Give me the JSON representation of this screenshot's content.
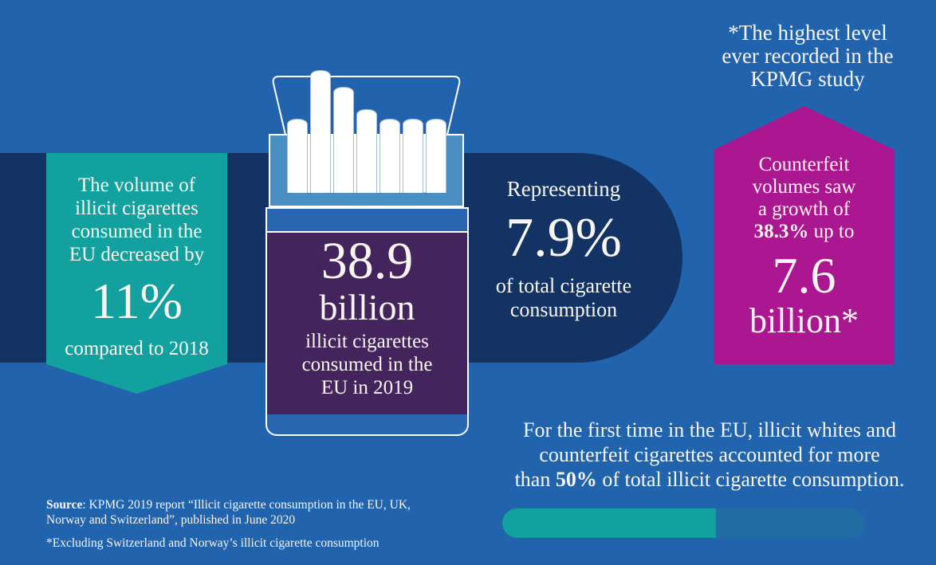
{
  "colors": {
    "bg": "#2164ad",
    "navy": "#133365",
    "teal": "#12a19e",
    "magenta": "#aa1790",
    "purple": "#44245c",
    "packbody": "#4a8fc2",
    "midblue": "#2a67b2",
    "trackblue": "#216da3",
    "ink": "#f7f5ef"
  },
  "top_note": {
    "lines": [
      "*The highest level",
      "ever recorded in the",
      "KPMG study"
    ]
  },
  "teal_banner": {
    "intro_lines": [
      "The volume of",
      "illicit cigarettes",
      "consumed in the",
      "EU decreased by"
    ],
    "value": "11%",
    "caption": "compared to 2018"
  },
  "pack": {
    "value": "38.9",
    "unit": "billion",
    "caption_lines": [
      "illicit cigarettes",
      "consumed in the",
      "EU in 2019"
    ],
    "cigarettes": [
      93,
      154,
      133,
      105,
      93,
      93,
      93
    ]
  },
  "representing": {
    "intro": "Representing",
    "value": "7.9%",
    "caption_lines": [
      "of total cigarette",
      "consumption"
    ]
  },
  "counterfeit": {
    "lines": [
      "Counterfeit",
      "volumes saw",
      "a growth of"
    ],
    "bold_value": "38.3%",
    "after_bold": " up to",
    "value": "7.6",
    "unit": "billion*"
  },
  "highlight": {
    "line1": "For the first time in the EU, illicit whites and",
    "line2": "counterfeit cigarettes accounted for more",
    "line3_pre": "than ",
    "line3_bold": "50%",
    "line3_post": " of total illicit cigarette consumption."
  },
  "progress": {
    "percent": 59
  },
  "source": {
    "label": "Source",
    "line1_rest": ": KPMG 2019 report “Illicit cigarette consumption in the EU, UK,",
    "line2": "Norway and Switzerland”, published in June 2020",
    "footnote": "*Excluding Switzerland and Norway’s illicit cigarette consumption"
  }
}
